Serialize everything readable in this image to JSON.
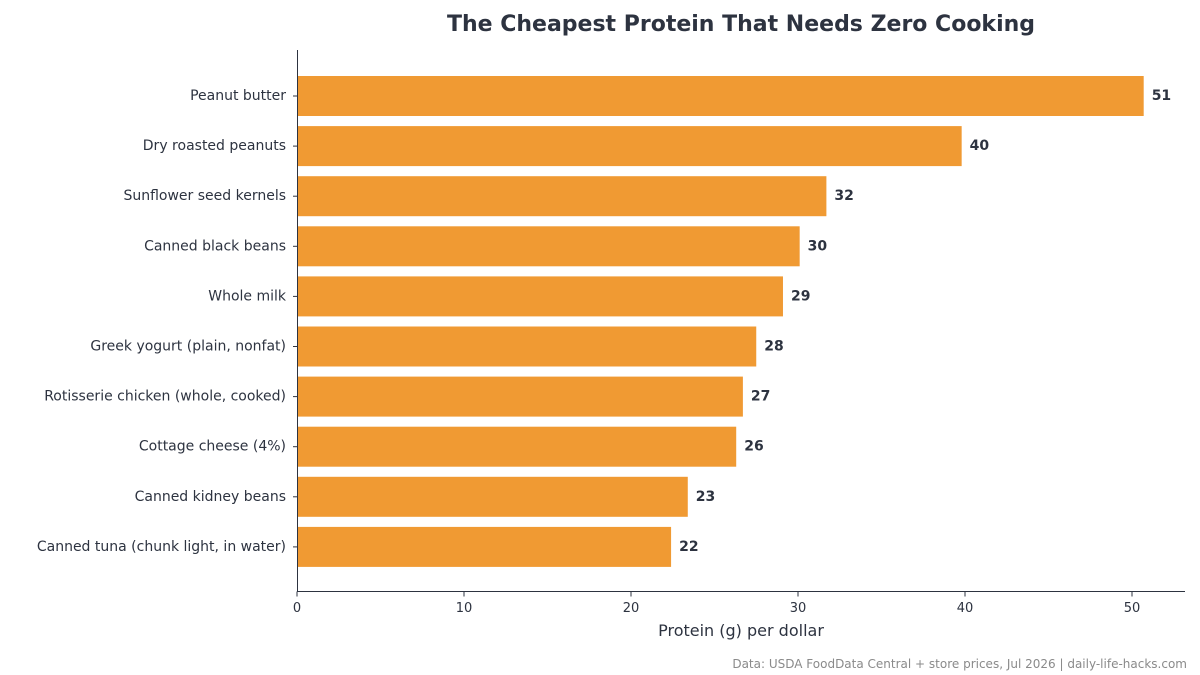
{
  "chart_data": {
    "type": "bar",
    "orientation": "horizontal",
    "title": "The Cheapest Protein That Needs Zero Cooking",
    "xlabel": "Protein (g) per dollar",
    "ylabel": "",
    "xlim": [
      0,
      53.2
    ],
    "xticks": [
      0,
      10,
      20,
      30,
      40,
      50
    ],
    "grid": false,
    "categories": [
      "Peanut butter",
      "Dry roasted peanuts",
      "Sunflower seed kernels",
      "Canned black beans",
      "Whole milk",
      "Greek yogurt (plain, nonfat)",
      "Rotisserie chicken (whole, cooked)",
      "Cottage cheese (4%)",
      "Canned kidney beans",
      "Canned tuna (chunk light, in water)"
    ],
    "values": [
      50.7,
      39.8,
      31.7,
      30.1,
      29.1,
      27.5,
      26.7,
      26.3,
      23.4,
      22.4
    ],
    "value_labels": [
      "51",
      "40",
      "32",
      "30",
      "29",
      "28",
      "27",
      "26",
      "23",
      "22"
    ],
    "bar_color": "#f09a33",
    "text_color": "#2d3340",
    "source": "Data: USDA FoodData Central + store prices, Jul 2026 | daily-life-hacks.com"
  }
}
